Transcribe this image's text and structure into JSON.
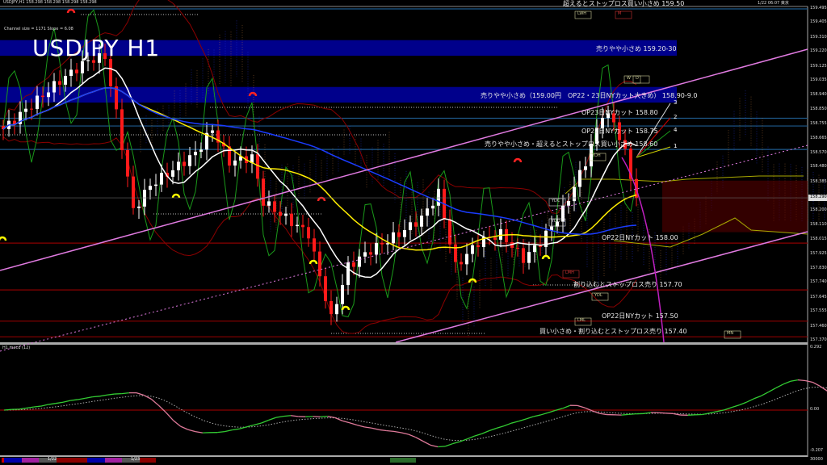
{
  "header": {
    "symbol_line": "USDJPY,H1  158.298 158.298 158.298 158.298",
    "big_title": "USDJPY H1",
    "channel_info": "Channel size = 1171 Slope = 6.08",
    "clock": "1/22 06:07 東京"
  },
  "colors": {
    "background": "#000000",
    "bull": "#ffffff",
    "bear": "#ff1a1a",
    "band": "#00008b",
    "level_blue": "#1e5a8c",
    "level_red": "#8b0000",
    "channel": "#e07ae0",
    "ma_fast": "#ffffff",
    "ma_mid": "#ffee00",
    "ma_slow": "#1a3cff",
    "macd_up": "#33cc33",
    "macd_down": "#e07a9a"
  },
  "bands": [
    {
      "label": "売りやや小さめ 159.20-30",
      "from": 159.2,
      "to": 159.3
    },
    {
      "label": "売りやや小さめ（159.00円　OP22・23日NYカット大きめ） 158.90-9.0",
      "from": 158.9,
      "to": 159.0
    }
  ],
  "levels": [
    {
      "price": 159.5,
      "label": "超えるとストップロス買い小さめ 159.50",
      "color": "blue"
    },
    {
      "price": 158.8,
      "label": "OP23日NYカット 158.80",
      "color": "blue"
    },
    {
      "price": 158.75,
      "label": "OP22日NYカット 158.75",
      "color": "blue"
    },
    {
      "price": 158.6,
      "label": "売りやや小さめ・超えるとストップロス買い小さめ 158.60",
      "color": "blue"
    },
    {
      "price": 158.0,
      "label": "OP22日NYカット 158.00",
      "color": "red"
    },
    {
      "price": 157.7,
      "label": "割り込むとストップロス売り 157.70",
      "color": "red"
    },
    {
      "price": 157.5,
      "label": "OP22日NYカット 157.50",
      "color": "red"
    },
    {
      "price": 157.4,
      "label": "買い小さめ・割り込むとストップロス売り 157.40",
      "color": "red"
    }
  ],
  "markers": [
    "LWH",
    "M",
    "W",
    "D",
    "YDH",
    "YDC",
    "YDO",
    "LMH",
    "YDL",
    "LML",
    "MN"
  ],
  "fan_labels": [
    "3",
    "2",
    "4",
    "1"
  ],
  "chart_data": {
    "type": "candlestick",
    "timeframe": "H1",
    "ylim": [
      157.37,
      159.53
    ],
    "y_ticks": [
      "159.495",
      "159.405",
      "159.310",
      "159.220",
      "159.125",
      "159.035",
      "158.940",
      "158.850",
      "158.755",
      "158.665",
      "158.570",
      "158.480",
      "158.385",
      "158.290",
      "158.200",
      "158.110",
      "158.015",
      "157.925",
      "157.830",
      "157.740",
      "157.645",
      "157.555",
      "157.460",
      "157.370"
    ],
    "current_price": "158.290",
    "close_keypoints": [
      [
        0,
        158.73
      ],
      [
        5,
        158.885
      ],
      [
        10,
        159.04
      ],
      [
        15,
        159.17
      ],
      [
        18,
        159.195
      ],
      [
        20,
        158.83
      ],
      [
        23,
        158.21
      ],
      [
        26,
        158.37
      ],
      [
        30,
        158.47
      ],
      [
        34,
        158.575
      ],
      [
        37,
        158.73
      ],
      [
        40,
        158.52
      ],
      [
        44,
        158.55
      ],
      [
        46,
        158.265
      ],
      [
        50,
        158.16
      ],
      [
        54,
        158.06
      ],
      [
        58,
        157.515
      ],
      [
        61,
        157.85
      ],
      [
        65,
        157.955
      ],
      [
        70,
        158.06
      ],
      [
        74,
        158.16
      ],
      [
        77,
        158.32
      ],
      [
        80,
        157.85
      ],
      [
        84,
        158.005
      ],
      [
        88,
        158.06
      ],
      [
        92,
        157.9
      ],
      [
        95,
        158.005
      ],
      [
        99,
        158.21
      ],
      [
        103,
        158.52
      ],
      [
        106,
        158.83
      ],
      [
        108,
        158.78
      ],
      [
        110,
        158.575
      ],
      [
        112,
        158.29
      ]
    ],
    "macd": {
      "label": "H1 macd (12)",
      "ticks": [
        "0.292",
        "0.00",
        "-0.207"
      ]
    },
    "x_labels": [
      "1/22",
      "1/23"
    ],
    "volume_axis": "30000"
  }
}
